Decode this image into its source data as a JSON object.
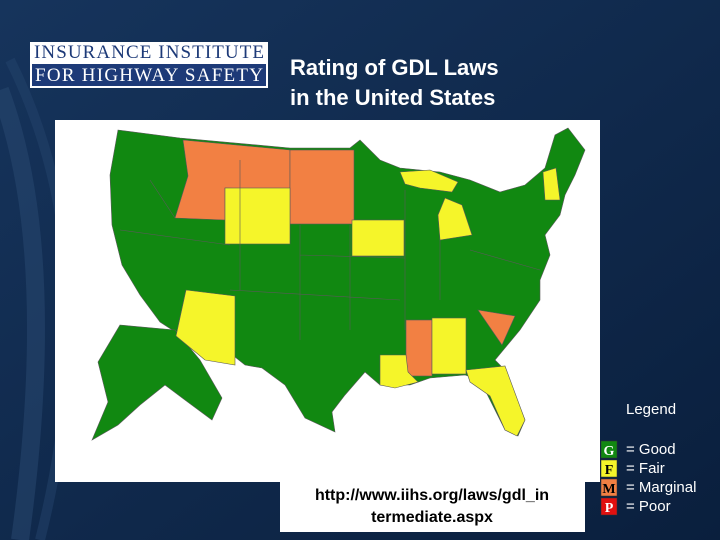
{
  "header": {
    "logo": [
      "INSURANCE INSTITUTE",
      "FOR HIGHWAY SAFETY"
    ],
    "title": [
      "Rating of GDL Laws",
      "in the United States"
    ]
  },
  "legend": {
    "title": "Legend",
    "items": [
      {
        "letter": "G",
        "label": "= Good"
      },
      {
        "letter": "F",
        "label": "= Fair"
      },
      {
        "letter": "M",
        "label": "= Marginal"
      },
      {
        "letter": "P",
        "label": "= Poor"
      }
    ]
  },
  "source": [
    "http://www.iihs.org/laws/gdl_in",
    "termediate.aspx"
  ]
}
